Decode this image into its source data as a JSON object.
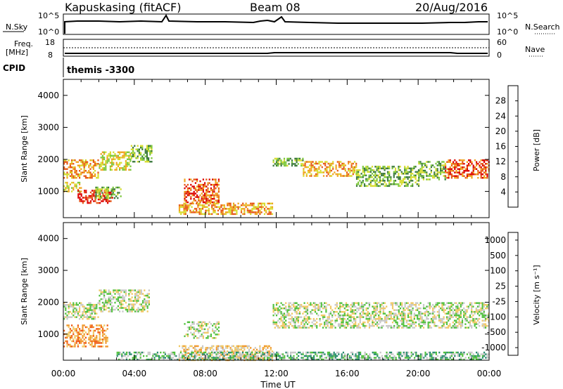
{
  "header": {
    "station": "Kapuskasing (fitACF)",
    "beam": "Beam 08",
    "date": "20/Aug/2016"
  },
  "noise_panel": {
    "left_label": "N.Sky",
    "left_ticks": [
      "10^5",
      "10^0"
    ],
    "right_ticks": [
      "10^5",
      "10^0"
    ],
    "right_label": "N.Search"
  },
  "freq_panel": {
    "label_line1": "Freq.",
    "label_line2": "[MHz]",
    "left_ticks": [
      "18",
      "8"
    ],
    "right_ticks": [
      "60",
      "0"
    ],
    "right_label": "Nave"
  },
  "cpid": {
    "label": "CPID",
    "value": "themis -3300"
  },
  "chart_data": [
    {
      "type": "heatmap",
      "quantity": "Power",
      "ylabel": "Slant Range [km]",
      "yticks": [
        1000,
        2000,
        3000,
        4000
      ],
      "ylim": [
        180,
        4500
      ],
      "xlabel": "Time UT",
      "xticks": [
        "00:00",
        "04:00",
        "08:00",
        "12:00",
        "16:00",
        "20:00",
        "00:00"
      ],
      "xlim_hours": [
        0,
        24
      ],
      "colorbar": {
        "label": "Power [dB]",
        "ticks": [
          "4",
          "8",
          "12",
          "16",
          "20",
          "24",
          "28"
        ],
        "colors": [
          "#0000dd",
          "#2a50b0",
          "#3c7a3c",
          "#7dc83c",
          "#d7dc30",
          "#f0a41e",
          "#e65a19",
          "#dc0000"
        ]
      },
      "echo_regions": [
        {
          "t0": 0.0,
          "t1": 2.0,
          "r0": 1450,
          "r1": 2000,
          "level": 5
        },
        {
          "t0": 2.0,
          "t1": 3.8,
          "r0": 1700,
          "r1": 2250,
          "level": 4
        },
        {
          "t0": 3.8,
          "t1": 5.0,
          "r0": 1950,
          "r1": 2450,
          "level": 3
        },
        {
          "t0": 0.0,
          "t1": 1.0,
          "r0": 1000,
          "r1": 1300,
          "level": 4
        },
        {
          "t0": 0.8,
          "t1": 2.8,
          "r0": 650,
          "r1": 1050,
          "level": 7
        },
        {
          "t0": 1.8,
          "t1": 3.2,
          "r0": 800,
          "r1": 1150,
          "level": 3
        },
        {
          "t0": 6.8,
          "t1": 8.8,
          "r0": 650,
          "r1": 1400,
          "level": 6
        },
        {
          "t0": 6.5,
          "t1": 11.8,
          "r0": 300,
          "r1": 650,
          "level": 5
        },
        {
          "t0": 11.8,
          "t1": 13.5,
          "r0": 1800,
          "r1": 2050,
          "level": 3
        },
        {
          "t0": 13.5,
          "t1": 16.5,
          "r0": 1500,
          "r1": 1950,
          "level": 5
        },
        {
          "t0": 16.5,
          "t1": 20.0,
          "r0": 1150,
          "r1": 1800,
          "level": 3
        },
        {
          "t0": 20.0,
          "t1": 21.5,
          "r0": 1400,
          "r1": 1950,
          "level": 3
        },
        {
          "t0": 21.5,
          "t1": 24.0,
          "r0": 1450,
          "r1": 2000,
          "level": 6
        }
      ]
    },
    {
      "type": "heatmap",
      "quantity": "Velocity",
      "ylabel": "Slant Range [km]",
      "yticks": [
        1000,
        2000,
        3000,
        4000
      ],
      "ylim": [
        180,
        4500
      ],
      "xlabel": "Time UT",
      "xticks": [
        "00:00",
        "04:00",
        "08:00",
        "12:00",
        "16:00",
        "20:00",
        "00:00"
      ],
      "xlim_hours": [
        0,
        24
      ],
      "colorbar": {
        "label": "Velocity [m s⁻¹]",
        "ticks": [
          "1000",
          "500",
          "100",
          "25",
          "-25",
          "-100",
          "-500",
          "-1000"
        ],
        "colors": [
          "#1e3cbe",
          "#288c6e",
          "#50c03c",
          "#c8c8c8",
          "#f0c864",
          "#f09628",
          "#f05a14",
          "#e61414"
        ]
      },
      "echo_regions": [
        {
          "t0": 0.0,
          "t1": 2.0,
          "r0": 1450,
          "r1": 2000,
          "level": 3
        },
        {
          "t0": 2.0,
          "t1": 4.8,
          "r0": 1700,
          "r1": 2400,
          "level": 3
        },
        {
          "t0": 0.0,
          "t1": 2.5,
          "r0": 600,
          "r1": 1300,
          "level": 5
        },
        {
          "t0": 6.8,
          "t1": 8.8,
          "r0": 900,
          "r1": 1400,
          "level": 3
        },
        {
          "t0": 6.5,
          "t1": 11.8,
          "r0": 200,
          "r1": 650,
          "level": 4
        },
        {
          "t0": 11.8,
          "t1": 24.0,
          "r0": 1200,
          "r1": 2000,
          "level": 3
        },
        {
          "t0": 3.0,
          "t1": 24.0,
          "r0": 200,
          "r1": 450,
          "level": 2
        }
      ]
    }
  ]
}
